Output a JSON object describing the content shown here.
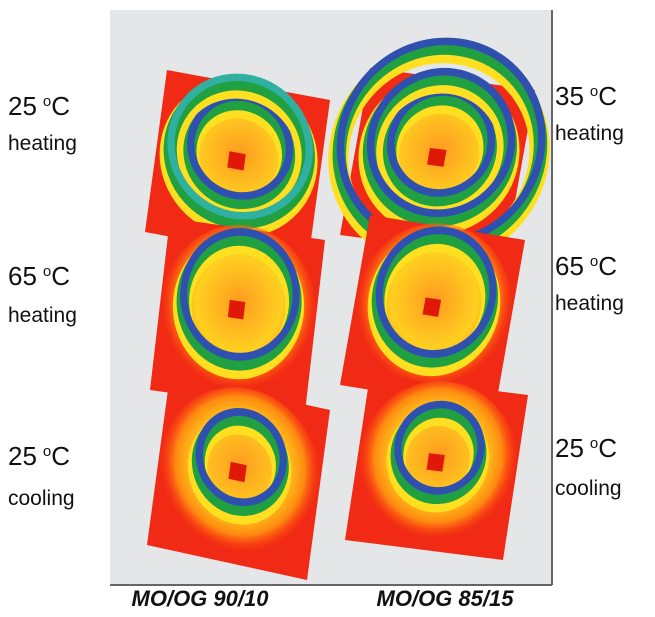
{
  "left_labels": [
    {
      "number": "25",
      "degree": "o",
      "unit": "C",
      "mode": "heating"
    },
    {
      "number": "65",
      "degree": "o",
      "unit": "C",
      "mode": "heating"
    },
    {
      "number": "25",
      "degree": "o",
      "unit": "C",
      "mode": "cooling"
    }
  ],
  "right_labels": [
    {
      "number": "35",
      "degree": "o",
      "unit": "C",
      "mode": "heating"
    },
    {
      "number": "65",
      "degree": "o",
      "unit": "C",
      "mode": "heating"
    },
    {
      "number": "25",
      "degree": "o",
      "unit": "C",
      "mode": "cooling"
    }
  ],
  "captions": [
    "MO/OG 90/10",
    "MO/OG 85/15"
  ]
}
